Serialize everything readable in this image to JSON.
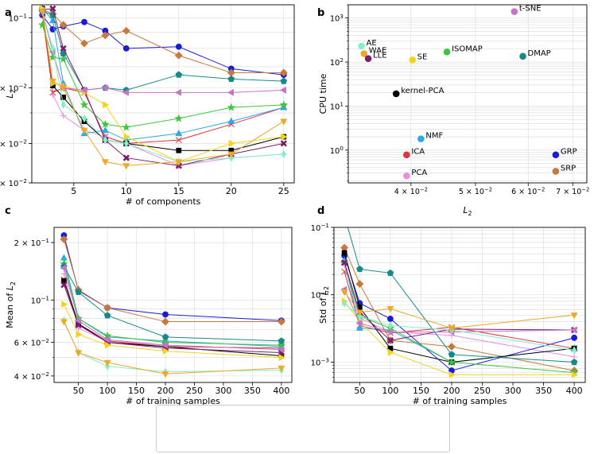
{
  "colors": {
    "PCA": "#e88fe0",
    "GRP": "#1a1adb",
    "SRP": "#c8783a",
    "ICA": "#e5303a",
    "NMF": "#2aa8e8",
    "kernel-PCA": "#000000",
    "ISOMAP": "#3ec43e",
    "DMAP": "#168a8a",
    "LLE": "#7a1f6e",
    "SE": "#f2d41a",
    "t-SNE": "#c873c8",
    "AE": "#80f0c8",
    "WAE": "#eea824"
  },
  "legend": {
    "entries": [
      {
        "key": "PCA",
        "label": "PCA",
        "marker": "plus"
      },
      {
        "key": "GRP",
        "label": "GRP",
        "marker": "circle"
      },
      {
        "key": "SRP",
        "label": "SRP",
        "marker": "diamond"
      },
      {
        "key": "ICA",
        "label": "ICA",
        "marker": "x"
      },
      {
        "key": "NMF",
        "label": "NMF",
        "marker": "triangle-up"
      },
      {
        "key": "kernel-PCA",
        "label": "kernel-PCA",
        "marker": "square"
      },
      {
        "key": "ISOMAP",
        "label": "ISOMAP",
        "marker": "star"
      },
      {
        "key": "DMAP",
        "label": "DMAP",
        "marker": "pentagon"
      },
      {
        "key": "LLE",
        "label": "LLE",
        "marker": "xbold"
      },
      {
        "key": "SE",
        "label": "SE",
        "marker": "triangle-right"
      },
      {
        "key": "t-SNE",
        "label": "t-SNE",
        "marker": "triangle-left"
      },
      {
        "key": "AE",
        "label": "AE",
        "marker": "thin-diamond"
      },
      {
        "key": "WAE",
        "label": "WAE",
        "marker": "triangle-down"
      }
    ]
  },
  "chart_data": [
    {
      "panel": "a",
      "type": "line",
      "xlabel": "# of components",
      "ylabel": "L_2",
      "yscale": "log",
      "xlim": [
        1,
        26
      ],
      "ylim": [
        0.03,
        0.11
      ],
      "xticks": [
        5,
        10,
        15,
        20,
        25
      ],
      "yticks": [
        {
          "v": 0.03,
          "label": "3 × 10^-2"
        },
        {
          "v": 0.04,
          "label": "4 × 10^-2"
        },
        {
          "v": 0.06,
          "label": "6 × 10^-2"
        },
        {
          "v": 0.1,
          "label": "10^-1"
        }
      ],
      "x": [
        2,
        3,
        4,
        6,
        8,
        10,
        15,
        20,
        25
      ],
      "series": [
        {
          "name": "PCA",
          "values": [
            0.105,
            0.057,
            0.049,
            0.044,
            0.042,
            0.04,
            0.034,
            0.036,
            0.037
          ]
        },
        {
          "name": "GRP",
          "values": [
            0.102,
            0.092,
            0.094,
            0.097,
            0.091,
            0.08,
            0.081,
            0.069,
            0.066
          ]
        },
        {
          "name": "SRP",
          "values": [
            0.106,
            0.103,
            0.095,
            0.083,
            0.088,
            0.091,
            0.076,
            0.067,
            0.067
          ]
        },
        {
          "name": "ICA",
          "values": [
            0.103,
            0.058,
            0.06,
            0.058,
            0.042,
            0.04,
            0.041,
            0.046,
            0.052
          ]
        },
        {
          "name": "NMF",
          "values": [
            0.107,
            0.098,
            0.062,
            0.043,
            0.044,
            0.041,
            0.043,
            0.047,
            0.052
          ]
        },
        {
          "name": "kernel-PCA",
          "values": [
            0.107,
            0.061,
            0.056,
            0.047,
            0.041,
            0.04,
            0.038,
            0.038,
            0.042
          ]
        },
        {
          "name": "ISOMAP",
          "values": [
            0.095,
            0.075,
            0.074,
            0.053,
            0.046,
            0.045,
            0.048,
            0.052,
            0.053
          ]
        },
        {
          "name": "DMAP",
          "values": [
            0.105,
            0.102,
            0.077,
            0.059,
            0.06,
            0.059,
            0.066,
            0.064,
            0.063
          ]
        },
        {
          "name": "LLE",
          "values": [
            0.106,
            0.107,
            0.08,
            0.059,
            0.041,
            0.036,
            0.034,
            0.037,
            0.04
          ]
        },
        {
          "name": "SE",
          "values": [
            0.107,
            0.062,
            0.061,
            0.058,
            0.053,
            0.042,
            0.035,
            0.04,
            0.042
          ]
        },
        {
          "name": "t-SNE",
          "values": [
            0.105,
            0.078,
            0.06,
            0.059,
            0.06,
            0.058,
            0.058,
            0.058,
            0.059
          ]
        },
        {
          "name": "AE",
          "values": [
            0.105,
            0.08,
            0.053,
            0.048,
            0.041,
            0.04,
            0.035,
            0.036,
            0.037
          ]
        },
        {
          "name": "WAE",
          "values": [
            0.105,
            0.063,
            0.06,
            0.044,
            0.035,
            0.034,
            0.035,
            0.037,
            0.047
          ]
        }
      ]
    },
    {
      "panel": "b",
      "type": "scatter",
      "xlabel": "L_2",
      "ylabel": "CPU time",
      "xscale": "log",
      "yscale": "log",
      "xlim": [
        0.0322,
        0.0735
      ],
      "ylim": [
        0.18,
        2000
      ],
      "xticks": [
        {
          "v": 0.04,
          "label": "4 × 10^-2"
        },
        {
          "v": 0.05,
          "label": "5 × 10^-2"
        },
        {
          "v": 0.06,
          "label": "6 × 10^-2"
        },
        {
          "v": 0.07,
          "label": "7 × 10^-2"
        }
      ],
      "yticks": [
        {
          "v": 1,
          "label": "10^0"
        },
        {
          "v": 10,
          "label": "10^1"
        },
        {
          "v": 100,
          "label": "10^2"
        },
        {
          "v": 1000,
          "label": "10^3"
        }
      ],
      "points": [
        {
          "name": "t-SNE",
          "label": "t-SNE",
          "x": 0.0572,
          "y": 1400
        },
        {
          "name": "AE",
          "label": "AE",
          "x": 0.0337,
          "y": 230
        },
        {
          "name": "WAE",
          "label": "WAE",
          "x": 0.034,
          "y": 155
        },
        {
          "name": "LLE",
          "label": "LLE",
          "x": 0.0345,
          "y": 120
        },
        {
          "name": "SE",
          "label": "SE",
          "x": 0.0402,
          "y": 112
        },
        {
          "name": "ISOMAP",
          "label": "ISOMAP",
          "x": 0.0453,
          "y": 170
        },
        {
          "name": "DMAP",
          "label": "DMAP",
          "x": 0.0589,
          "y": 135
        },
        {
          "name": "kernel-PCA",
          "label": "kernel-PCA",
          "x": 0.038,
          "y": 19
        },
        {
          "name": "NMF",
          "label": "NMF",
          "x": 0.0414,
          "y": 1.8
        },
        {
          "name": "ICA",
          "label": "ICA",
          "x": 0.0394,
          "y": 0.78
        },
        {
          "name": "GRP",
          "label": "GRP",
          "x": 0.066,
          "y": 0.78
        },
        {
          "name": "SRP",
          "label": "SRP",
          "x": 0.066,
          "y": 0.33
        },
        {
          "name": "PCA",
          "label": "PCA",
          "x": 0.0394,
          "y": 0.26
        }
      ]
    },
    {
      "panel": "c",
      "type": "line",
      "xlabel": "# of training samples",
      "ylabel": "Mean of L_2",
      "yscale": "log",
      "xlim": [
        8,
        418
      ],
      "ylim": [
        0.037,
        0.24
      ],
      "xticks": [
        50,
        100,
        150,
        200,
        250,
        300,
        350,
        400
      ],
      "yticks": [
        {
          "v": 0.04,
          "label": "4 × 10^-2"
        },
        {
          "v": 0.06,
          "label": "6 × 10^-2"
        },
        {
          "v": 0.1,
          "label": "10^-1"
        },
        {
          "v": 0.2,
          "label": "2 × 10^-1"
        }
      ],
      "x": [
        25,
        50,
        100,
        200,
        400
      ],
      "series": [
        {
          "name": "PCA",
          "values": [
            0.137,
            0.071,
            0.061,
            0.058,
            0.055
          ]
        },
        {
          "name": "GRP",
          "values": [
            0.218,
            0.112,
            0.091,
            0.084,
            0.078
          ]
        },
        {
          "name": "SRP",
          "values": [
            0.208,
            0.113,
            0.091,
            0.077,
            0.077
          ]
        },
        {
          "name": "ICA",
          "values": [
            0.128,
            0.075,
            0.061,
            0.057,
            0.056
          ]
        },
        {
          "name": "NMF",
          "values": [
            0.166,
            0.08,
            0.064,
            0.061,
            0.057
          ]
        },
        {
          "name": "kernel-PCA",
          "values": [
            0.126,
            0.075,
            0.06,
            0.057,
            0.051
          ]
        },
        {
          "name": "ISOMAP",
          "values": [
            0.155,
            0.08,
            0.065,
            0.06,
            0.058
          ]
        },
        {
          "name": "DMAP",
          "values": [
            0.15,
            0.11,
            0.083,
            0.064,
            0.061
          ]
        },
        {
          "name": "LLE",
          "values": [
            0.12,
            0.074,
            0.06,
            0.056,
            0.053
          ]
        },
        {
          "name": "SE",
          "values": [
            0.095,
            0.066,
            0.058,
            0.054,
            0.05
          ]
        },
        {
          "name": "t-SNE",
          "values": [
            0.147,
            0.078,
            0.062,
            0.058,
            0.055
          ]
        },
        {
          "name": "AE",
          "values": [
            0.078,
            0.053,
            0.045,
            0.042,
            0.043
          ]
        },
        {
          "name": "WAE",
          "values": [
            0.077,
            0.053,
            0.047,
            0.041,
            0.044
          ]
        }
      ]
    },
    {
      "panel": "d",
      "type": "line",
      "xlabel": "# of training samples",
      "ylabel": "Std of L_2",
      "yscale": "log",
      "xlim": [
        8,
        418
      ],
      "ylim": [
        0.0005,
        0.1
      ],
      "xticks": [
        50,
        100,
        150,
        200,
        250,
        300,
        350,
        400
      ],
      "yticks": [
        {
          "v": 0.001,
          "label": "10^-3"
        },
        {
          "v": 0.01,
          "label": "10^-2"
        },
        {
          "v": 0.1,
          "label": "10^-1"
        }
      ],
      "x": [
        25,
        50,
        100,
        200,
        400
      ],
      "series": [
        {
          "name": "PCA",
          "values": [
            0.028,
            0.0045,
            0.0028,
            0.0025,
            0.0012
          ]
        },
        {
          "name": "GRP",
          "values": [
            0.038,
            0.0075,
            0.0044,
            0.00075,
            0.0023
          ]
        },
        {
          "name": "SRP",
          "values": [
            0.05,
            0.0145,
            0.0021,
            0.0017,
            0.00075
          ]
        },
        {
          "name": "ICA",
          "values": [
            0.022,
            0.0035,
            0.0027,
            0.0033,
            0.0016
          ]
        },
        {
          "name": "NMF",
          "values": [
            0.032,
            0.0032,
            0.003,
            0.001,
            0.0016
          ]
        },
        {
          "name": "kernel-PCA",
          "values": [
            0.042,
            0.0065,
            0.0016,
            0.001,
            0.0016
          ]
        },
        {
          "name": "ISOMAP",
          "values": [
            0.03,
            0.0048,
            0.0032,
            0.001,
            0.0007
          ]
        },
        {
          "name": "DMAP",
          "values": [
            0.15,
            0.024,
            0.021,
            0.0013,
            0.001
          ]
        },
        {
          "name": "LLE",
          "values": [
            0.03,
            0.0055,
            0.0021,
            0.0031,
            0.003
          ]
        },
        {
          "name": "SE",
          "values": [
            0.008,
            0.004,
            0.0014,
            0.00065,
            0.00065
          ]
        },
        {
          "name": "t-SNE",
          "values": [
            0.012,
            0.0038,
            0.0028,
            0.0028,
            0.003
          ]
        },
        {
          "name": "AE",
          "values": [
            0.0075,
            0.0048,
            0.0035,
            0.003,
            0.0015
          ]
        },
        {
          "name": "WAE",
          "values": [
            0.011,
            0.0055,
            0.0062,
            0.0032,
            0.005
          ]
        }
      ]
    }
  ]
}
